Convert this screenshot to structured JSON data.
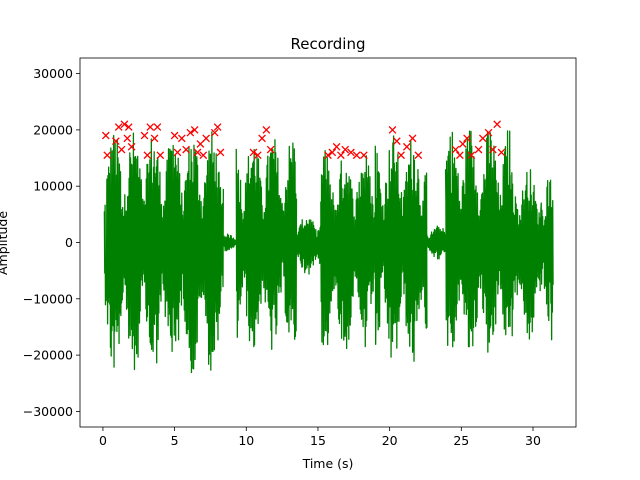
{
  "chart_data": {
    "type": "line",
    "title": "Recording",
    "xlabel": "Time (s)",
    "ylabel": "Amplitude",
    "xlim": [
      -1.6,
      33.0
    ],
    "ylim": [
      -32768,
      32767
    ],
    "x_ticks": [
      0,
      5,
      10,
      15,
      20,
      25,
      30
    ],
    "y_ticks": [
      -30000,
      -20000,
      -10000,
      0,
      10000,
      20000,
      30000
    ],
    "y_tick_labels": [
      "−30000",
      "−20000",
      "−10000",
      "0",
      "10000",
      "20000",
      "30000"
    ],
    "grid": false,
    "series": [
      {
        "color": "#008000",
        "segments": [
          {
            "start": 0.1,
            "end": 8.4,
            "peak": 20000,
            "trough": -24000
          },
          {
            "start": 8.4,
            "end": 9.3,
            "peak": 1500,
            "trough": -1500
          },
          {
            "start": 9.3,
            "end": 13.5,
            "peak": 19500,
            "trough": -20000
          },
          {
            "start": 13.5,
            "end": 15.2,
            "peak": 5000,
            "trough": -6000
          },
          {
            "start": 15.2,
            "end": 19.0,
            "peak": 16500,
            "trough": -20000
          },
          {
            "start": 19.0,
            "end": 22.6,
            "peak": 19500,
            "trough": -22500
          },
          {
            "start": 22.6,
            "end": 23.9,
            "peak": 3000,
            "trough": -3000
          },
          {
            "start": 23.9,
            "end": 28.4,
            "peak": 21000,
            "trough": -21000
          },
          {
            "start": 28.4,
            "end": 30.5,
            "peak": 13500,
            "trough": -18500
          },
          {
            "start": 30.5,
            "end": 31.4,
            "peak": 14500,
            "trough": -18000
          }
        ]
      },
      {
        "marker": "x",
        "color": "#ff0000",
        "x": [
          0.2,
          0.3,
          0.9,
          1.1,
          1.3,
          1.5,
          1.7,
          1.8,
          2.0,
          2.9,
          3.1,
          3.3,
          3.6,
          3.8,
          4.0,
          5.0,
          5.2,
          5.5,
          5.8,
          6.1,
          6.4,
          6.6,
          6.8,
          7.0,
          7.2,
          7.8,
          8.0,
          8.2,
          10.5,
          10.8,
          11.1,
          11.4,
          11.7,
          15.7,
          16.0,
          16.3,
          16.6,
          16.9,
          17.3,
          17.7,
          18.2,
          20.2,
          20.5,
          20.8,
          21.2,
          21.6,
          22.0,
          24.6,
          24.9,
          25.1,
          25.4,
          25.7,
          26.2,
          26.5,
          26.9,
          27.2,
          27.5,
          27.8
        ],
        "y": [
          19000,
          15500,
          18000,
          20500,
          16500,
          21000,
          18500,
          20500,
          17000,
          19000,
          15500,
          20500,
          18500,
          20500,
          15500,
          19000,
          16000,
          18500,
          16500,
          19500,
          20000,
          16000,
          17500,
          15500,
          18500,
          19500,
          20500,
          16000,
          16000,
          15500,
          18500,
          20000,
          16500,
          15500,
          16000,
          17000,
          15500,
          16500,
          16000,
          15500,
          15500,
          20000,
          18000,
          15500,
          17000,
          18500,
          15500,
          16500,
          15500,
          17500,
          18500,
          15500,
          16500,
          18500,
          19500,
          16500,
          21000,
          16000
        ]
      }
    ]
  }
}
